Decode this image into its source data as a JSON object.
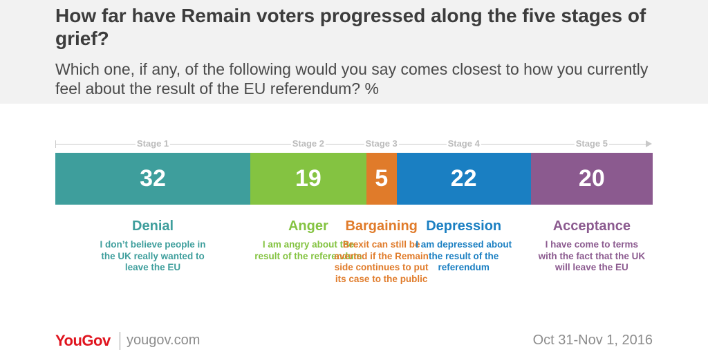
{
  "header": {
    "title": "How far have Remain voters progressed along the five stages of grief?",
    "subtitle": "Which one, if any, of the following would you say comes closest to how you currently feel about the result of the EU referendum? %"
  },
  "chart_data": {
    "type": "bar",
    "orientation": "horizontal-stacked",
    "unit": "%",
    "stages": [
      "Stage 1",
      "Stage 2",
      "Stage 3",
      "Stage 4",
      "Stage 5"
    ],
    "categories": [
      "Denial",
      "Anger",
      "Bargaining",
      "Depression",
      "Acceptance"
    ],
    "values": [
      32,
      19,
      5,
      22,
      20
    ],
    "colors": [
      "#3e9e9c",
      "#84c341",
      "#e07b2a",
      "#1a7fc2",
      "#8b5a8f"
    ],
    "descriptions": [
      "I don’t believe people in the UK really wanted to leave the EU",
      "I am angry about the result of the referendum",
      "Brexit can still be averted if the Remain side continues to put its case to the public",
      "I am depressed about the result of the referendum",
      "I have come to terms with the fact that the UK will leave the EU"
    ]
  },
  "footer": {
    "logo": "YouGov",
    "site": "yougov.com",
    "date": "Oct 31-Nov 1, 2016"
  }
}
